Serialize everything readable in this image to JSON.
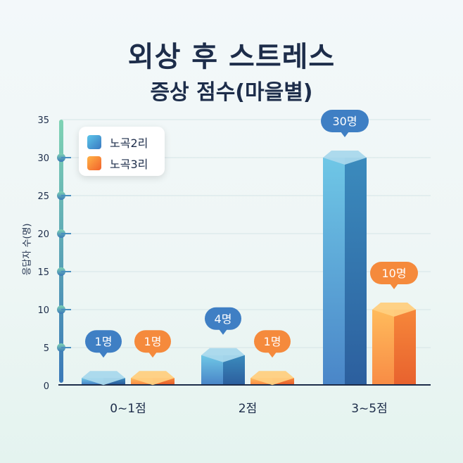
{
  "title_line1": "외상 후 스트레스",
  "title_line2": "증상 점수(마을별)",
  "chart_data": {
    "type": "bar",
    "title": "외상 후 스트레스 증상 점수(마을별)",
    "xlabel": "",
    "ylabel": "응답자 수(명)",
    "ylim": [
      0,
      35
    ],
    "yticks": [
      0,
      5,
      10,
      15,
      20,
      25,
      30,
      35
    ],
    "grid": true,
    "legend_position": "top-left",
    "categories": [
      "0~1점",
      "2점",
      "3~5점"
    ],
    "series": [
      {
        "name": "노곡2리",
        "values": [
          1,
          4,
          30
        ],
        "labels": [
          "1명",
          "4명",
          "30명"
        ],
        "color": "#3f7fc4"
      },
      {
        "name": "노곡3리",
        "values": [
          1,
          1,
          10
        ],
        "labels": [
          "1명",
          "1명",
          "10명"
        ],
        "color": "#f58a3c"
      }
    ]
  }
}
